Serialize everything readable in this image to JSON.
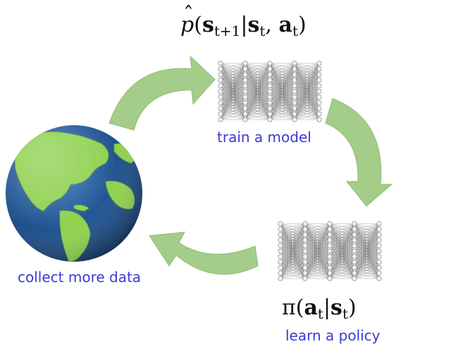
{
  "labels": {
    "train_model": "train a model",
    "collect_data": "collect more data",
    "learn_policy": "learn a policy"
  },
  "formulas": {
    "model": {
      "func": "p",
      "open": "(",
      "s_next_base": "s",
      "s_next_sub": "t+1",
      "bar": "|",
      "s_base": "s",
      "s_sub": "t",
      "comma": ",",
      "a_base": "a",
      "a_sub": "t",
      "close": ")"
    },
    "policy": {
      "func": "π",
      "open": "(",
      "a_base": "a",
      "a_sub": "t",
      "bar": "|",
      "s_base": "s",
      "s_sub": "t",
      "close": ")"
    }
  },
  "colors": {
    "arrow": "#9cc97f",
    "label": "#3a3ad6",
    "ocean": "#1f4f8a",
    "land": "#8fd14f",
    "node": "#f2f2f2",
    "edge": "#555555"
  },
  "icons": [
    "earth-globe-icon",
    "neural-network-icon",
    "cycle-arrow-icon"
  ]
}
